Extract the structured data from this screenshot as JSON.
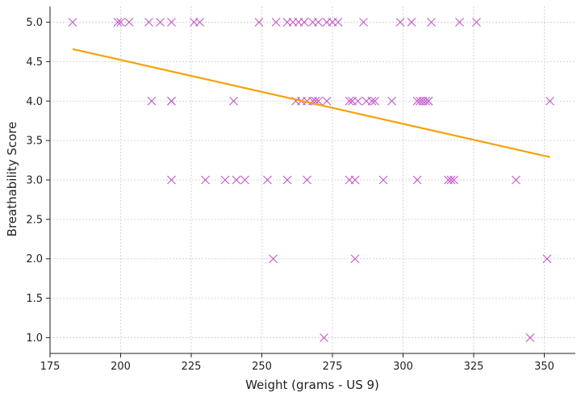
{
  "chart_data": {
    "type": "scatter",
    "title": "",
    "xlabel": "Weight (grams - US 9)",
    "ylabel": "Breathability Score",
    "xlim": [
      175,
      361
    ],
    "ylim": [
      0.8,
      5.2
    ],
    "xticks": [
      175,
      200,
      225,
      250,
      275,
      300,
      325,
      350
    ],
    "yticks": [
      1.0,
      1.5,
      2.0,
      2.5,
      3.0,
      3.5,
      4.0,
      4.5,
      5.0
    ],
    "xtick_labels": [
      "175",
      "200",
      "225",
      "250",
      "275",
      "300",
      "325",
      "350"
    ],
    "ytick_labels": [
      "1.0",
      "1.5",
      "2.0",
      "2.5",
      "3.0",
      "3.5",
      "4.0",
      "4.5",
      "5.0"
    ],
    "grid": true,
    "legend": "none",
    "marker": "x",
    "colors": {
      "points": "#c255c8",
      "trend": "#f5a20a",
      "grid": "#cccccc",
      "axis": "#222222"
    },
    "points": [
      [
        183,
        5
      ],
      [
        199,
        5
      ],
      [
        200,
        5
      ],
      [
        203,
        5
      ],
      [
        210,
        5
      ],
      [
        214,
        5
      ],
      [
        218,
        5
      ],
      [
        226,
        5
      ],
      [
        228,
        5
      ],
      [
        249,
        5
      ],
      [
        255,
        5
      ],
      [
        259,
        5
      ],
      [
        261,
        5
      ],
      [
        263,
        5
      ],
      [
        265,
        5
      ],
      [
        268,
        5
      ],
      [
        270,
        5
      ],
      [
        273,
        5
      ],
      [
        275,
        5
      ],
      [
        277,
        5
      ],
      [
        286,
        5
      ],
      [
        299,
        5
      ],
      [
        303,
        5
      ],
      [
        310,
        5
      ],
      [
        320,
        5
      ],
      [
        326,
        5
      ],
      [
        211,
        4
      ],
      [
        218,
        4
      ],
      [
        218,
        4
      ],
      [
        240,
        4
      ],
      [
        262,
        4
      ],
      [
        264,
        4
      ],
      [
        266,
        4
      ],
      [
        268,
        4
      ],
      [
        269,
        4
      ],
      [
        270,
        4
      ],
      [
        273,
        4
      ],
      [
        281,
        4
      ],
      [
        282,
        4
      ],
      [
        284,
        4
      ],
      [
        287,
        4
      ],
      [
        289,
        4
      ],
      [
        290,
        4
      ],
      [
        296,
        4
      ],
      [
        305,
        4
      ],
      [
        306,
        4
      ],
      [
        307,
        4
      ],
      [
        308,
        4
      ],
      [
        309,
        4
      ],
      [
        309,
        4
      ],
      [
        352,
        4
      ],
      [
        218,
        3
      ],
      [
        230,
        3
      ],
      [
        237,
        3
      ],
      [
        241,
        3
      ],
      [
        244,
        3
      ],
      [
        252,
        3
      ],
      [
        259,
        3
      ],
      [
        266,
        3
      ],
      [
        281,
        3
      ],
      [
        283,
        3
      ],
      [
        293,
        3
      ],
      [
        305,
        3
      ],
      [
        316,
        3
      ],
      [
        317,
        3
      ],
      [
        318,
        3
      ],
      [
        340,
        3
      ],
      [
        254,
        2
      ],
      [
        283,
        2
      ],
      [
        351,
        2
      ],
      [
        272,
        1
      ],
      [
        345,
        1
      ]
    ],
    "trendline": {
      "x": [
        183,
        352
      ],
      "y": [
        4.66,
        3.29
      ]
    }
  }
}
